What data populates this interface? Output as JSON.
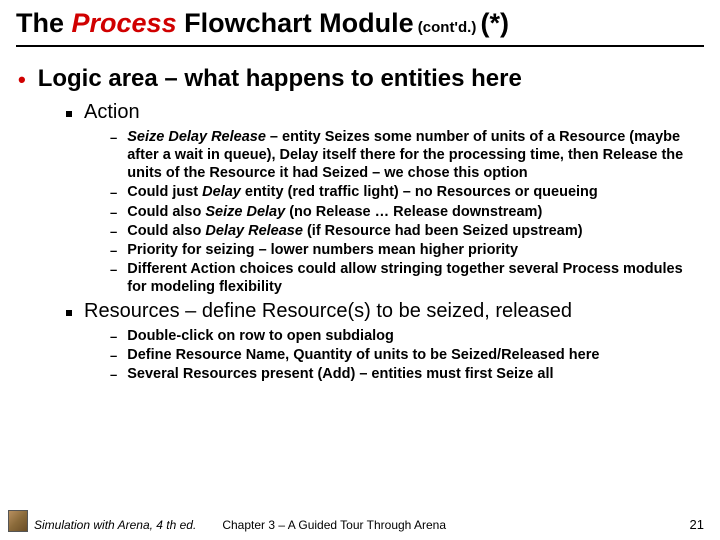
{
  "title": {
    "part1": "The ",
    "part2": "Process",
    "part3": " Flowchart Module",
    "contd": " (cont'd.) ",
    "star": "(*)"
  },
  "colors": {
    "accent_red": "#d00000",
    "text": "#000000",
    "background": "#ffffff"
  },
  "fonts": {
    "title_size": 27,
    "level1_size": 24,
    "level2_size": 20,
    "level3_size": 14.5,
    "footer_size": 12
  },
  "level1": {
    "text": "Logic area – what happens to entities here"
  },
  "sections": [
    {
      "heading": "Action",
      "items": [
        {
          "bold_ital": "Seize Delay Release",
          "rest": " – entity Seizes some number of units of a Resource (maybe after a wait in queue), Delay itself there for the processing time, then Release the units of the Resource it had Seized – we chose this option"
        },
        {
          "pre": "Could just ",
          "bold_ital": "Delay",
          "rest": " entity (red traffic light) – no Resources or queueing"
        },
        {
          "pre": "Could also ",
          "bold_ital": "Seize Delay",
          "rest": " (no Release … Release downstream)"
        },
        {
          "pre": "Could also ",
          "bold_ital": "Delay Release",
          "rest": " (if Resource had been Seized upstream)"
        },
        {
          "plain": "Priority for seizing – lower numbers mean higher priority"
        },
        {
          "plain": "Different Action choices could allow stringing together several Process modules for modeling flexibility"
        }
      ]
    },
    {
      "heading": "Resources – define Resource(s) to be seized, released",
      "items": [
        {
          "plain": "Double-click on row to open subdialog"
        },
        {
          "plain": "Define Resource Name, Quantity of units to be Seized/Released here"
        },
        {
          "plain": "Several Resources present (Add) – entities must first Seize all"
        }
      ]
    }
  ],
  "footer": {
    "left": "Simulation with Arena, 4 th ed.",
    "center": "Chapter 3 – A Guided Tour Through Arena",
    "page": "21"
  }
}
